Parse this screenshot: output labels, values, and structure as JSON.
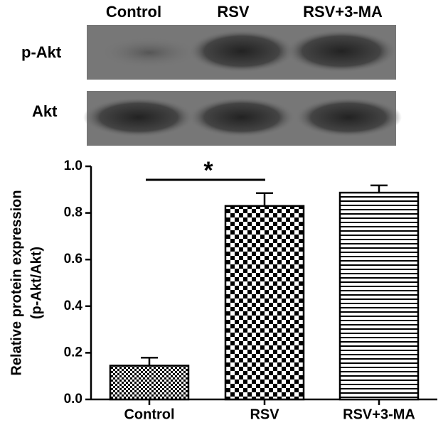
{
  "blot": {
    "lanes": [
      "Control",
      "RSV",
      "RSV+3-MA"
    ],
    "rows": [
      "p-Akt",
      "Akt"
    ]
  },
  "chart_data": {
    "type": "bar",
    "ylabel": [
      "Relative protein expression",
      "(p-Akt/Akt)"
    ],
    "categories": [
      "Control",
      "RSV",
      "RSV+3-MA"
    ],
    "values": [
      0.145,
      0.83,
      0.887
    ],
    "errors": [
      0.034,
      0.055,
      0.031
    ],
    "ylim": [
      0,
      1.0
    ],
    "yticks": [
      {
        "value": 0,
        "label": "0.0"
      },
      0.2,
      0.4,
      0.6,
      0.8,
      {
        "value": 1.0,
        "label": "1.0"
      }
    ],
    "annotation": "*"
  }
}
